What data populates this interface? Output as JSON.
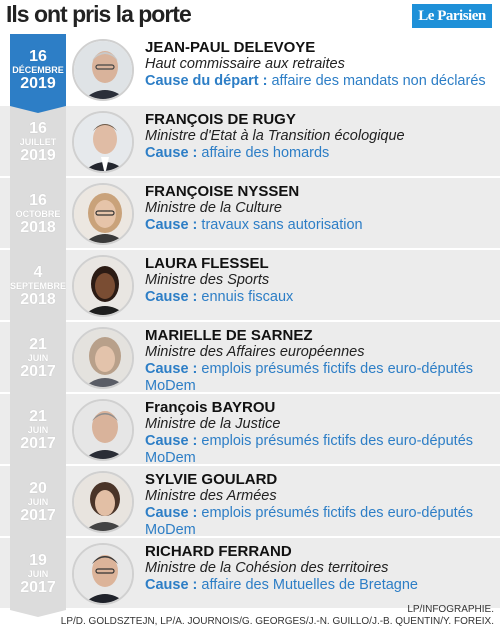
{
  "header": {
    "title": "Ils ont pris la porte",
    "logo": "Le Parisien",
    "accent": "#2d7ec6",
    "logo_color": "#1e90d8"
  },
  "entries": [
    {
      "day": "16",
      "month": "DÉCEMBRE",
      "year": "2019",
      "name": "JEAN-PAUL DELEVOYE",
      "role": "Haut commissaire aux retraites",
      "cause_label": "Cause du départ :",
      "cause_text": " affaire des mandats non déclarés",
      "active": true
    },
    {
      "day": "16",
      "month": "JUILLET",
      "year": "2019",
      "name": "FRANÇOIS DE RUGY",
      "role": "Ministre d'Etat à la Transition écologique",
      "cause_label": "Cause :",
      "cause_text": " affaire des homards"
    },
    {
      "day": "16",
      "month": "OCTOBRE",
      "year": "2018",
      "name": "FRANÇOISE NYSSEN",
      "role": "Ministre de la Culture",
      "cause_label": "Cause :",
      "cause_text": " travaux sans autorisation"
    },
    {
      "day": "4",
      "month": "SEPTEMBRE",
      "year": "2018",
      "name": "LAURA FLESSEL",
      "role": "Ministre des Sports",
      "cause_label": "Cause :",
      "cause_text": " ennuis fiscaux"
    },
    {
      "day": "21",
      "month": "JUIN",
      "year": "2017",
      "name": "MARIELLE DE SARNEZ",
      "role": "Ministre des Affaires européennes",
      "cause_label": "Cause :",
      "cause_text": " emplois présumés fictifs des euro-députés MoDem"
    },
    {
      "day": "21",
      "month": "JUIN",
      "year": "2017",
      "name": "François BAYROU",
      "role": "Ministre de la Justice",
      "cause_label": "Cause :",
      "cause_text": " emplois présumés fictifs des euro-députés MoDem"
    },
    {
      "day": "20",
      "month": "JUIN",
      "year": "2017",
      "name": "SYLVIE GOULARD",
      "role": "Ministre des Armées",
      "cause_label": "Cause :",
      "cause_text": " emplois présumés fictifs des euro-députés MoDem"
    },
    {
      "day": "19",
      "month": "JUIN",
      "year": "2017",
      "name": "RICHARD FERRAND",
      "role": "Ministre de la Cohésion des territoires",
      "cause_label": "Cause :",
      "cause_text": " affaire des Mutuelles de Bretagne"
    }
  ],
  "credits": {
    "line1": "LP/INFOGRAPHIE.",
    "line2": "LP/D. GOLDSZTEJN, LP/A. JOURNOIS/G. GEORGES/J.-N. GUILLO/J.-B. QUENTIN/Y. FOREIX."
  }
}
